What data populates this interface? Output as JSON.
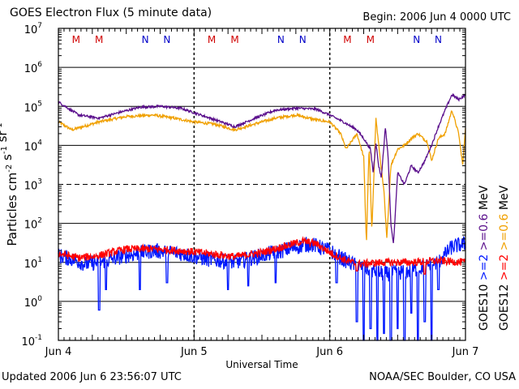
{
  "header": {
    "title": "GOES Electron Flux (5 minute data)",
    "begin": "Begin: 2006 Jun 4 0000 UTC"
  },
  "footer": {
    "updated": "Updated 2006 Jun  6 23:56:07 UTC",
    "source": "NOAA/SEC Boulder, CO USA"
  },
  "colors": {
    "goes10_high": "#5a0f8c",
    "goes12_high": "#f0a000",
    "goes10_low": "#0018ff",
    "goes12_low": "#ff0000",
    "midnight_marker": "#d00000",
    "noon_marker": "#0000c8"
  },
  "chart_data": {
    "type": "line",
    "title": "GOES Electron Flux (5 minute data)",
    "xlabel": "Universal Time",
    "ylabel": "Particles cm^-2 s^-1 sr^-1",
    "yscale": "log",
    "ylim": [
      0.1,
      10000000
    ],
    "xlim": [
      0,
      3
    ],
    "x_tick_labels": [
      "Jun 4",
      "Jun 5",
      "Jun 6",
      "Jun 7"
    ],
    "y_ticks": [
      {
        "value": 10000000,
        "base": "10",
        "exp": "7"
      },
      {
        "value": 1000000,
        "base": "10",
        "exp": "6"
      },
      {
        "value": 100000,
        "base": "10",
        "exp": "5"
      },
      {
        "value": 10000,
        "base": "10",
        "exp": "4"
      },
      {
        "value": 1000,
        "base": "10",
        "exp": "3"
      },
      {
        "value": 100,
        "base": "10",
        "exp": "2"
      },
      {
        "value": 10,
        "base": "10",
        "exp": "1"
      },
      {
        "value": 1,
        "base": "10",
        "exp": "0"
      },
      {
        "value": 0.1,
        "base": "10",
        "exp": "-1"
      }
    ],
    "dashed_gridlines": [
      1000
    ],
    "solid_gridlines": [
      1000000,
      100000,
      10000,
      100,
      10,
      1
    ],
    "local_time_markers": [
      {
        "label": "M",
        "x": 0.13,
        "kind": "midnight"
      },
      {
        "label": "M",
        "x": 0.3,
        "kind": "midnight"
      },
      {
        "label": "N",
        "x": 0.64,
        "kind": "noon"
      },
      {
        "label": "N",
        "x": 0.8,
        "kind": "noon"
      },
      {
        "label": "M",
        "x": 1.13,
        "kind": "midnight"
      },
      {
        "label": "M",
        "x": 1.3,
        "kind": "midnight"
      },
      {
        "label": "N",
        "x": 1.64,
        "kind": "noon"
      },
      {
        "label": "N",
        "x": 1.8,
        "kind": "noon"
      },
      {
        "label": "M",
        "x": 2.13,
        "kind": "midnight"
      },
      {
        "label": "M",
        "x": 2.3,
        "kind": "midnight"
      },
      {
        "label": "N",
        "x": 2.64,
        "kind": "noon"
      },
      {
        "label": "N",
        "x": 2.8,
        "kind": "noon"
      }
    ],
    "legend": [
      {
        "label": "GOES10",
        "color": "#000000"
      },
      {
        "label": ">=2",
        "color": "#0018ff"
      },
      {
        "label": ">=0.6",
        "color": "#5a0f8c"
      },
      {
        "label": "MeV",
        "color": "#000000"
      },
      {
        "label": "GOES12",
        "color": "#000000"
      },
      {
        "label": ">=2",
        "color": "#ff0000"
      },
      {
        "label": ">=0.6",
        "color": "#f0a000"
      },
      {
        "label": "MeV",
        "color": "#000000"
      }
    ],
    "series": [
      {
        "name": "GOES10 >=0.6 MeV",
        "color": "#5a0f8c",
        "noise": 0.03,
        "points": [
          [
            0,
            130000
          ],
          [
            0.15,
            60000
          ],
          [
            0.3,
            50000
          ],
          [
            0.45,
            70000
          ],
          [
            0.6,
            95000
          ],
          [
            0.75,
            100000
          ],
          [
            0.9,
            90000
          ],
          [
            1.05,
            60000
          ],
          [
            1.2,
            40000
          ],
          [
            1.3,
            30000
          ],
          [
            1.45,
            50000
          ],
          [
            1.6,
            80000
          ],
          [
            1.75,
            90000
          ],
          [
            1.9,
            85000
          ],
          [
            2.0,
            60000
          ],
          [
            2.1,
            40000
          ],
          [
            2.2,
            25000
          ],
          [
            2.25,
            15000
          ],
          [
            2.3,
            8000
          ],
          [
            2.32,
            2000
          ],
          [
            2.34,
            12000
          ],
          [
            2.36,
            3000
          ],
          [
            2.38,
            1500
          ],
          [
            2.41,
            30000
          ],
          [
            2.43,
            5000
          ],
          [
            2.45,
            100
          ],
          [
            2.47,
            30
          ],
          [
            2.5,
            2000
          ],
          [
            2.55,
            1000
          ],
          [
            2.6,
            3000
          ],
          [
            2.65,
            2000
          ],
          [
            2.7,
            4000
          ],
          [
            2.75,
            10000
          ],
          [
            2.8,
            30000
          ],
          [
            2.85,
            80000
          ],
          [
            2.9,
            200000
          ],
          [
            2.95,
            150000
          ],
          [
            3.0,
            200000
          ]
        ]
      },
      {
        "name": "GOES12 >=0.6 MeV",
        "color": "#f0a000",
        "noise": 0.035,
        "points": [
          [
            0,
            40000
          ],
          [
            0.1,
            25000
          ],
          [
            0.3,
            40000
          ],
          [
            0.5,
            55000
          ],
          [
            0.7,
            60000
          ],
          [
            0.85,
            50000
          ],
          [
            1.0,
            40000
          ],
          [
            1.15,
            35000
          ],
          [
            1.3,
            25000
          ],
          [
            1.5,
            40000
          ],
          [
            1.6,
            50000
          ],
          [
            1.75,
            60000
          ],
          [
            1.9,
            45000
          ],
          [
            2.0,
            40000
          ],
          [
            2.08,
            20000
          ],
          [
            2.12,
            8000
          ],
          [
            2.2,
            20000
          ],
          [
            2.25,
            5000
          ],
          [
            2.27,
            30
          ],
          [
            2.29,
            10000
          ],
          [
            2.31,
            60
          ],
          [
            2.34,
            50000
          ],
          [
            2.37,
            5000
          ],
          [
            2.4,
            600
          ],
          [
            2.42,
            40
          ],
          [
            2.45,
            3000
          ],
          [
            2.5,
            8000
          ],
          [
            2.55,
            10000
          ],
          [
            2.6,
            15000
          ],
          [
            2.65,
            20000
          ],
          [
            2.72,
            12000
          ],
          [
            2.75,
            4000
          ],
          [
            2.8,
            15000
          ],
          [
            2.85,
            20000
          ],
          [
            2.9,
            80000
          ],
          [
            2.95,
            20000
          ],
          [
            2.98,
            3000
          ],
          [
            3.0,
            30000
          ]
        ]
      },
      {
        "name": "GOES10 >=2 MeV",
        "color": "#0018ff",
        "noise": 0.2,
        "dips": [
          [
            0.3,
            0.6
          ],
          [
            0.35,
            2
          ],
          [
            0.6,
            2
          ],
          [
            0.8,
            3
          ],
          [
            1.25,
            2
          ],
          [
            1.4,
            2.5
          ],
          [
            1.6,
            3
          ],
          [
            2.05,
            3
          ],
          [
            2.2,
            0.3
          ],
          [
            2.25,
            0.1
          ],
          [
            2.3,
            0.2
          ],
          [
            2.35,
            0.1
          ],
          [
            2.4,
            0.15
          ],
          [
            2.45,
            0.1
          ],
          [
            2.5,
            0.2
          ],
          [
            2.55,
            0.1
          ],
          [
            2.6,
            0.5
          ],
          [
            2.65,
            0.1
          ],
          [
            2.7,
            0.3
          ],
          [
            2.75,
            0.1
          ],
          [
            2.8,
            2
          ]
        ],
        "points": [
          [
            0,
            15
          ],
          [
            0.1,
            12
          ],
          [
            0.2,
            9
          ],
          [
            0.3,
            10
          ],
          [
            0.5,
            15
          ],
          [
            0.7,
            20
          ],
          [
            0.9,
            17
          ],
          [
            1.1,
            12
          ],
          [
            1.3,
            10
          ],
          [
            1.5,
            15
          ],
          [
            1.7,
            22
          ],
          [
            1.85,
            30
          ],
          [
            2.0,
            20
          ],
          [
            2.1,
            12
          ],
          [
            2.2,
            8
          ],
          [
            2.4,
            5
          ],
          [
            2.6,
            6
          ],
          [
            2.8,
            10
          ],
          [
            2.9,
            25
          ],
          [
            3.0,
            30
          ]
        ]
      },
      {
        "name": "GOES12 >=2 MeV",
        "color": "#ff0000",
        "noise": 0.1,
        "dips": [
          [
            2.2,
            6
          ],
          [
            2.7,
            5
          ]
        ],
        "points": [
          [
            0,
            17
          ],
          [
            0.15,
            13
          ],
          [
            0.3,
            15
          ],
          [
            0.5,
            22
          ],
          [
            0.7,
            22
          ],
          [
            0.9,
            20
          ],
          [
            1.1,
            17
          ],
          [
            1.3,
            14
          ],
          [
            1.5,
            18
          ],
          [
            1.65,
            25
          ],
          [
            1.8,
            35
          ],
          [
            1.9,
            30
          ],
          [
            2.0,
            18
          ],
          [
            2.1,
            12
          ],
          [
            2.2,
            9
          ],
          [
            2.4,
            10
          ],
          [
            2.6,
            10
          ],
          [
            2.8,
            11
          ],
          [
            3.0,
            10
          ]
        ]
      }
    ]
  }
}
